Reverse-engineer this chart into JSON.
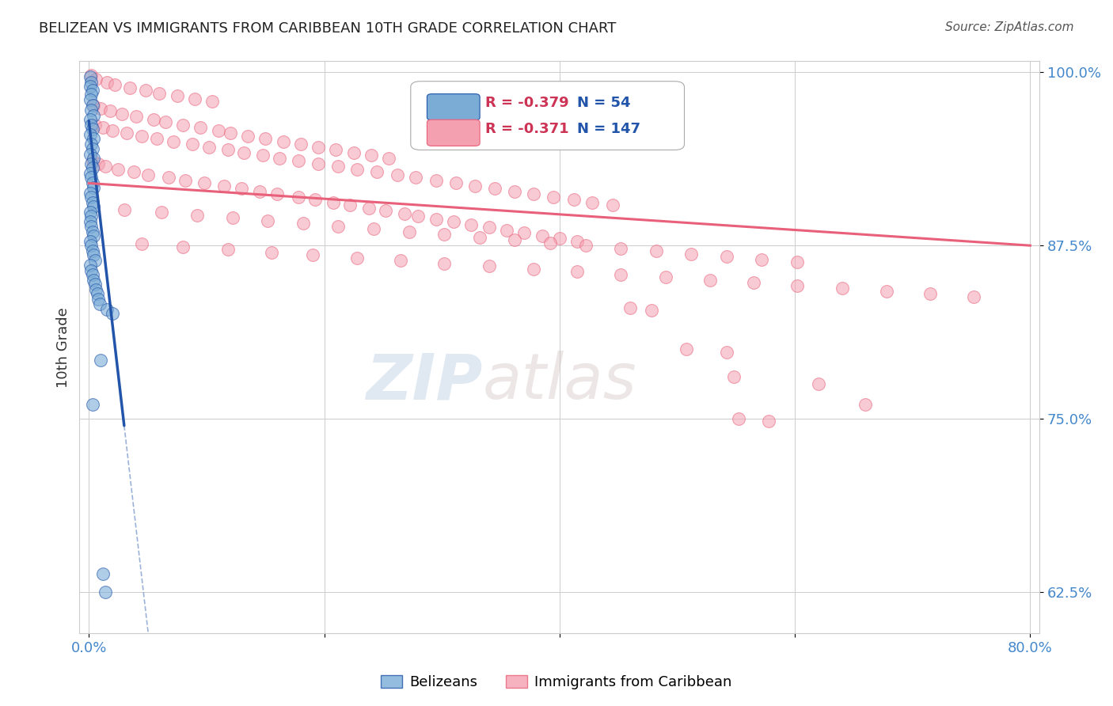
{
  "title": "BELIZEAN VS IMMIGRANTS FROM CARIBBEAN 10TH GRADE CORRELATION CHART",
  "source": "Source: ZipAtlas.com",
  "ylabel": "10th Grade",
  "ylim": [
    0.595,
    1.008
  ],
  "xlim": [
    -0.008,
    0.808
  ],
  "yticks": [
    0.625,
    0.75,
    0.875,
    1.0
  ],
  "ytick_labels": [
    "62.5%",
    "75.0%",
    "87.5%",
    "100.0%"
  ],
  "xticks": [
    0.0,
    0.2,
    0.4,
    0.6,
    0.8
  ],
  "xtick_labels": [
    "0.0%",
    "",
    "",
    "",
    "80.0%"
  ],
  "blue_R": -0.379,
  "blue_N": 54,
  "pink_R": -0.371,
  "pink_N": 147,
  "blue_color": "#7aacd6",
  "pink_color": "#f4a0b0",
  "blue_line_color": "#2255aa",
  "pink_line_color": "#e8607a",
  "blue_line_x0": 0.0,
  "blue_line_y0": 0.965,
  "blue_line_x1": 0.03,
  "blue_line_y1": 0.745,
  "blue_line_solid_end": 0.03,
  "blue_line_x_dash_end": 0.8,
  "pink_line_x0": 0.0,
  "pink_line_y0": 0.92,
  "pink_line_x1": 0.8,
  "pink_line_y1": 0.875,
  "blue_scatter": [
    [
      0.001,
      0.997
    ],
    [
      0.002,
      0.993
    ],
    [
      0.001,
      0.99
    ],
    [
      0.003,
      0.987
    ],
    [
      0.002,
      0.984
    ],
    [
      0.001,
      0.98
    ],
    [
      0.003,
      0.976
    ],
    [
      0.002,
      0.973
    ],
    [
      0.004,
      0.969
    ],
    [
      0.001,
      0.966
    ],
    [
      0.002,
      0.962
    ],
    [
      0.003,
      0.959
    ],
    [
      0.001,
      0.955
    ],
    [
      0.004,
      0.952
    ],
    [
      0.002,
      0.948
    ],
    [
      0.003,
      0.945
    ],
    [
      0.001,
      0.941
    ],
    [
      0.004,
      0.938
    ],
    [
      0.002,
      0.934
    ],
    [
      0.003,
      0.931
    ],
    [
      0.001,
      0.927
    ],
    [
      0.002,
      0.924
    ],
    [
      0.003,
      0.92
    ],
    [
      0.004,
      0.917
    ],
    [
      0.001,
      0.913
    ],
    [
      0.002,
      0.91
    ],
    [
      0.003,
      0.906
    ],
    [
      0.004,
      0.903
    ],
    [
      0.001,
      0.899
    ],
    [
      0.002,
      0.896
    ],
    [
      0.001,
      0.892
    ],
    [
      0.002,
      0.889
    ],
    [
      0.003,
      0.885
    ],
    [
      0.004,
      0.882
    ],
    [
      0.001,
      0.878
    ],
    [
      0.002,
      0.875
    ],
    [
      0.003,
      0.871
    ],
    [
      0.004,
      0.868
    ],
    [
      0.005,
      0.864
    ],
    [
      0.001,
      0.861
    ],
    [
      0.002,
      0.857
    ],
    [
      0.003,
      0.854
    ],
    [
      0.004,
      0.85
    ],
    [
      0.005,
      0.847
    ],
    [
      0.006,
      0.843
    ],
    [
      0.007,
      0.84
    ],
    [
      0.008,
      0.836
    ],
    [
      0.009,
      0.833
    ],
    [
      0.015,
      0.829
    ],
    [
      0.02,
      0.826
    ],
    [
      0.003,
      0.76
    ],
    [
      0.01,
      0.792
    ],
    [
      0.012,
      0.638
    ],
    [
      0.014,
      0.625
    ]
  ],
  "pink_scatter": [
    [
      0.002,
      0.998
    ],
    [
      0.006,
      0.995
    ],
    [
      0.015,
      0.993
    ],
    [
      0.022,
      0.991
    ],
    [
      0.035,
      0.989
    ],
    [
      0.048,
      0.987
    ],
    [
      0.06,
      0.985
    ],
    [
      0.075,
      0.983
    ],
    [
      0.09,
      0.981
    ],
    [
      0.105,
      0.979
    ],
    [
      0.004,
      0.976
    ],
    [
      0.01,
      0.974
    ],
    [
      0.018,
      0.972
    ],
    [
      0.028,
      0.97
    ],
    [
      0.04,
      0.968
    ],
    [
      0.055,
      0.966
    ],
    [
      0.065,
      0.964
    ],
    [
      0.08,
      0.962
    ],
    [
      0.095,
      0.96
    ],
    [
      0.11,
      0.958
    ],
    [
      0.12,
      0.956
    ],
    [
      0.135,
      0.954
    ],
    [
      0.15,
      0.952
    ],
    [
      0.165,
      0.95
    ],
    [
      0.18,
      0.948
    ],
    [
      0.195,
      0.946
    ],
    [
      0.21,
      0.944
    ],
    [
      0.225,
      0.942
    ],
    [
      0.24,
      0.94
    ],
    [
      0.255,
      0.938
    ],
    [
      0.003,
      0.936
    ],
    [
      0.008,
      0.934
    ],
    [
      0.014,
      0.932
    ],
    [
      0.025,
      0.93
    ],
    [
      0.038,
      0.928
    ],
    [
      0.05,
      0.926
    ],
    [
      0.068,
      0.924
    ],
    [
      0.082,
      0.922
    ],
    [
      0.098,
      0.92
    ],
    [
      0.115,
      0.918
    ],
    [
      0.13,
      0.916
    ],
    [
      0.145,
      0.914
    ],
    [
      0.16,
      0.912
    ],
    [
      0.178,
      0.91
    ],
    [
      0.192,
      0.908
    ],
    [
      0.208,
      0.906
    ],
    [
      0.222,
      0.904
    ],
    [
      0.238,
      0.902
    ],
    [
      0.252,
      0.9
    ],
    [
      0.268,
      0.898
    ],
    [
      0.28,
      0.896
    ],
    [
      0.295,
      0.894
    ],
    [
      0.31,
      0.892
    ],
    [
      0.325,
      0.89
    ],
    [
      0.34,
      0.888
    ],
    [
      0.355,
      0.886
    ],
    [
      0.37,
      0.884
    ],
    [
      0.385,
      0.882
    ],
    [
      0.4,
      0.88
    ],
    [
      0.415,
      0.878
    ],
    [
      0.005,
      0.962
    ],
    [
      0.012,
      0.96
    ],
    [
      0.02,
      0.958
    ],
    [
      0.032,
      0.956
    ],
    [
      0.045,
      0.954
    ],
    [
      0.058,
      0.952
    ],
    [
      0.072,
      0.95
    ],
    [
      0.088,
      0.948
    ],
    [
      0.102,
      0.946
    ],
    [
      0.118,
      0.944
    ],
    [
      0.132,
      0.942
    ],
    [
      0.148,
      0.94
    ],
    [
      0.162,
      0.938
    ],
    [
      0.178,
      0.936
    ],
    [
      0.195,
      0.934
    ],
    [
      0.212,
      0.932
    ],
    [
      0.228,
      0.93
    ],
    [
      0.245,
      0.928
    ],
    [
      0.262,
      0.926
    ],
    [
      0.278,
      0.924
    ],
    [
      0.295,
      0.922
    ],
    [
      0.312,
      0.92
    ],
    [
      0.328,
      0.918
    ],
    [
      0.345,
      0.916
    ],
    [
      0.362,
      0.914
    ],
    [
      0.378,
      0.912
    ],
    [
      0.395,
      0.91
    ],
    [
      0.412,
      0.908
    ],
    [
      0.428,
      0.906
    ],
    [
      0.445,
      0.904
    ],
    [
      0.03,
      0.901
    ],
    [
      0.062,
      0.899
    ],
    [
      0.092,
      0.897
    ],
    [
      0.122,
      0.895
    ],
    [
      0.152,
      0.893
    ],
    [
      0.182,
      0.891
    ],
    [
      0.212,
      0.889
    ],
    [
      0.242,
      0.887
    ],
    [
      0.272,
      0.885
    ],
    [
      0.302,
      0.883
    ],
    [
      0.332,
      0.881
    ],
    [
      0.362,
      0.879
    ],
    [
      0.392,
      0.877
    ],
    [
      0.422,
      0.875
    ],
    [
      0.452,
      0.873
    ],
    [
      0.482,
      0.871
    ],
    [
      0.512,
      0.869
    ],
    [
      0.542,
      0.867
    ],
    [
      0.572,
      0.865
    ],
    [
      0.602,
      0.863
    ],
    [
      0.045,
      0.876
    ],
    [
      0.08,
      0.874
    ],
    [
      0.118,
      0.872
    ],
    [
      0.155,
      0.87
    ],
    [
      0.19,
      0.868
    ],
    [
      0.228,
      0.866
    ],
    [
      0.265,
      0.864
    ],
    [
      0.302,
      0.862
    ],
    [
      0.34,
      0.86
    ],
    [
      0.378,
      0.858
    ],
    [
      0.415,
      0.856
    ],
    [
      0.452,
      0.854
    ],
    [
      0.49,
      0.852
    ],
    [
      0.528,
      0.85
    ],
    [
      0.565,
      0.848
    ],
    [
      0.602,
      0.846
    ],
    [
      0.64,
      0.844
    ],
    [
      0.678,
      0.842
    ],
    [
      0.715,
      0.84
    ],
    [
      0.752,
      0.838
    ],
    [
      0.552,
      0.75
    ],
    [
      0.578,
      0.748
    ],
    [
      0.548,
      0.78
    ],
    [
      0.66,
      0.76
    ],
    [
      0.508,
      0.8
    ],
    [
      0.542,
      0.798
    ],
    [
      0.46,
      0.83
    ],
    [
      0.478,
      0.828
    ],
    [
      0.62,
      0.775
    ]
  ],
  "watermark_zip": "ZIP",
  "watermark_atlas": "atlas",
  "axis_color": "#4488cc",
  "legend_text_color_r": "#cc3355",
  "legend_text_color_n": "#2255aa"
}
